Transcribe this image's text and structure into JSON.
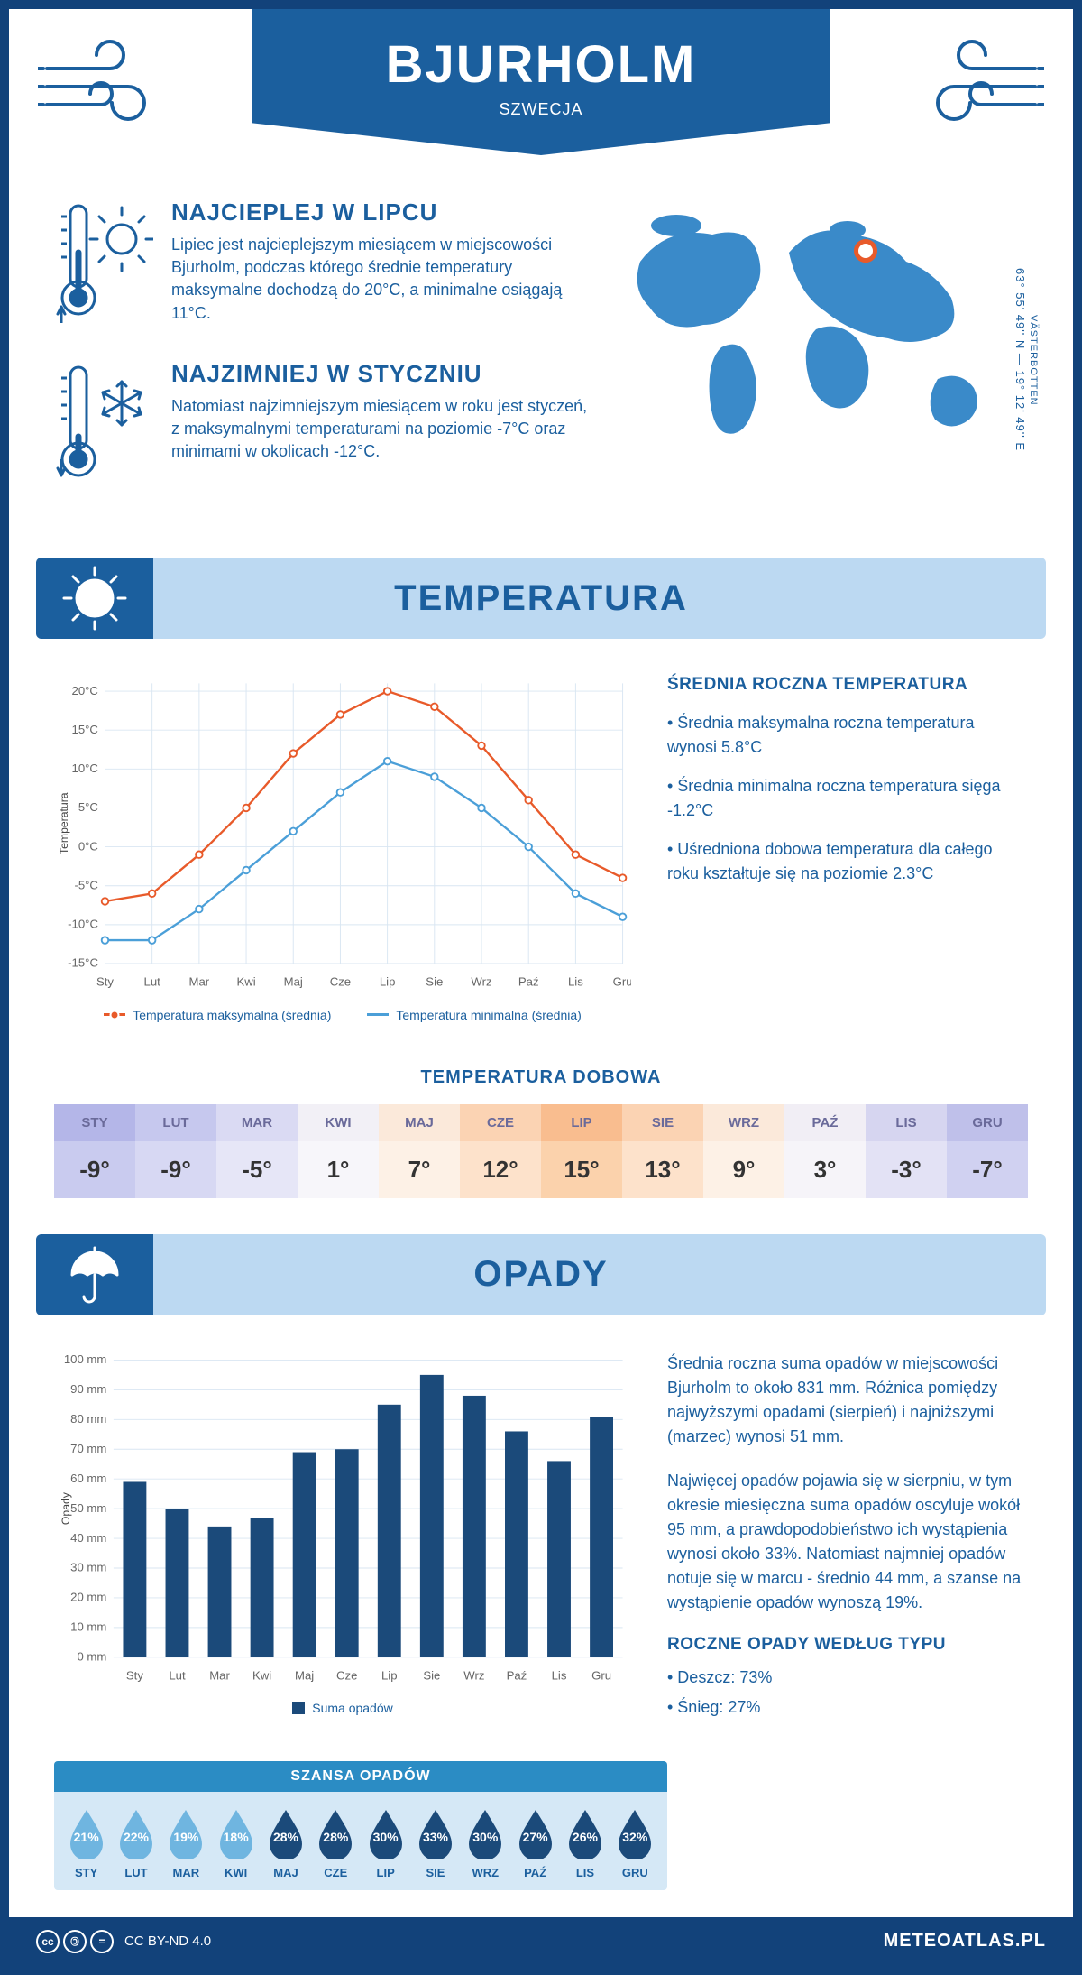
{
  "header": {
    "city": "BJURHOLM",
    "country": "SZWECJA"
  },
  "coords": {
    "text": "63° 55' 49'' N — 19° 12' 49'' E",
    "region": "VÄSTERBOTTEN"
  },
  "map_marker": {
    "left_pct": 57,
    "top_pct": 16
  },
  "facts": {
    "warmest": {
      "title": "NAJCIEPLEJ W LIPCU",
      "text": "Lipiec jest najcieplejszym miesiącem w miejscowości Bjurholm, podczas którego średnie temperatury maksymalne dochodzą do 20°C, a minimalne osiągają 11°C."
    },
    "coldest": {
      "title": "NAJZIMNIEJ W STYCZNIU",
      "text": "Natomiast najzimniejszym miesiącem w roku jest styczeń, z maksymalnymi temperaturami na poziomie -7°C oraz minimami w okolicach -12°C."
    }
  },
  "sections": {
    "temperature": "TEMPERATURA",
    "precipitation": "OPADY"
  },
  "temp_chart": {
    "type": "line",
    "y_axis_label": "Temperatura",
    "months": [
      "Sty",
      "Lut",
      "Mar",
      "Kwi",
      "Maj",
      "Cze",
      "Lip",
      "Sie",
      "Wrz",
      "Paź",
      "Lis",
      "Gru"
    ],
    "y_ticks": [
      -15,
      -10,
      -5,
      0,
      5,
      10,
      15,
      20
    ],
    "y_tick_labels": [
      "-15°C",
      "-10°C",
      "-5°C",
      "0°C",
      "5°C",
      "10°C",
      "15°C",
      "20°C"
    ],
    "ylim": [
      -15,
      21
    ],
    "series": {
      "max": {
        "label": "Temperatura maksymalna (średnia)",
        "color": "#e85a2a",
        "values": [
          -7,
          -6,
          -1,
          5,
          12,
          17,
          20,
          18,
          13,
          6,
          -1,
          -4
        ]
      },
      "min": {
        "label": "Temperatura minimalna (średnia)",
        "color": "#4b9fd8",
        "values": [
          -12,
          -12,
          -8,
          -3,
          2,
          7,
          11,
          9,
          5,
          0,
          -6,
          -9
        ]
      }
    },
    "grid_color": "#d9e6f2",
    "background": "#ffffff",
    "marker_radius": 4,
    "line_width": 2.5
  },
  "temp_summary": {
    "title": "ŚREDNIA ROCZNA TEMPERATURA",
    "bullets": [
      "• Średnia maksymalna roczna temperatura wynosi 5.8°C",
      "• Średnia minimalna roczna temperatura sięga -1.2°C",
      "• Uśredniona dobowa temperatura dla całego roku kształtuje się na poziomie 2.3°C"
    ]
  },
  "daily_temp_table": {
    "title": "TEMPERATURA DOBOWA",
    "months": [
      "STY",
      "LUT",
      "MAR",
      "KWI",
      "MAJ",
      "CZE",
      "LIP",
      "SIE",
      "WRZ",
      "PAŹ",
      "LIS",
      "GRU"
    ],
    "values": [
      "-9°",
      "-9°",
      "-5°",
      "1°",
      "7°",
      "12°",
      "15°",
      "13°",
      "9°",
      "3°",
      "-3°",
      "-7°"
    ],
    "header_colors": [
      "#b4b6e8",
      "#c6c8ee",
      "#dadaf3",
      "#f2f0f6",
      "#fbe9da",
      "#fbd3b3",
      "#f9bd8f",
      "#fbd3b3",
      "#fbe9da",
      "#f1eef5",
      "#d6d5f0",
      "#bfc0ea"
    ],
    "value_colors": [
      "#c9cbef",
      "#d7d8f3",
      "#e6e6f7",
      "#f7f6fa",
      "#fdf1e6",
      "#fde2cb",
      "#fbd2ac",
      "#fde2cb",
      "#fdf1e6",
      "#f6f4f9",
      "#e3e2f5",
      "#d0d1f1"
    ],
    "header_text_color": "#6a6a9a"
  },
  "precip_chart": {
    "type": "bar",
    "y_axis_label": "Opady",
    "months": [
      "Sty",
      "Lut",
      "Mar",
      "Kwi",
      "Maj",
      "Cze",
      "Lip",
      "Sie",
      "Wrz",
      "Paź",
      "Lis",
      "Gru"
    ],
    "values": [
      59,
      50,
      44,
      47,
      69,
      70,
      85,
      95,
      88,
      76,
      66,
      81
    ],
    "y_ticks": [
      0,
      10,
      20,
      30,
      40,
      50,
      60,
      70,
      80,
      90,
      100
    ],
    "y_tick_labels": [
      "0 mm",
      "10 mm",
      "20 mm",
      "30 mm",
      "40 mm",
      "50 mm",
      "60 mm",
      "70 mm",
      "80 mm",
      "90 mm",
      "100 mm"
    ],
    "ylim": [
      0,
      100
    ],
    "bar_color": "#1b4a7a",
    "grid_color": "#d9e6f2",
    "legend_label": "Suma opadów",
    "bar_width_ratio": 0.55
  },
  "precip_summary": {
    "paragraphs": [
      "Średnia roczna suma opadów w miejscowości Bjurholm to około 831 mm. Różnica pomiędzy najwyższymi opadami (sierpień) i najniższymi (marzec) wynosi 51 mm.",
      "Najwięcej opadów pojawia się w sierpniu, w tym okresie miesięczna suma opadów oscyluje wokół 95 mm, a prawdopodobieństwo ich wystąpienia wynosi około 33%. Natomiast najmniej opadów notuje się w marcu - średnio 44 mm, a szanse na wystąpienie opadów wynoszą 19%."
    ],
    "type_title": "ROCZNE OPADY WEDŁUG TYPU",
    "type_bullets": [
      "• Deszcz: 73%",
      "• Śnieg: 27%"
    ]
  },
  "precip_chance": {
    "title": "SZANSA OPADÓW",
    "months": [
      "STY",
      "LUT",
      "MAR",
      "KWI",
      "MAJ",
      "CZE",
      "LIP",
      "SIE",
      "WRZ",
      "PAŹ",
      "LIS",
      "GRU"
    ],
    "values": [
      "21%",
      "22%",
      "19%",
      "18%",
      "28%",
      "28%",
      "30%",
      "33%",
      "30%",
      "27%",
      "26%",
      "32%"
    ],
    "drop_colors": [
      "#6fb5e0",
      "#6fb5e0",
      "#6fb5e0",
      "#6fb5e0",
      "#1b4a7a",
      "#1b4a7a",
      "#1b4a7a",
      "#1b4a7a",
      "#1b4a7a",
      "#1b4a7a",
      "#1b4a7a",
      "#1b4a7a"
    ],
    "title_bar_color": "#2b8cc4",
    "body_bg": "#d5e8f6"
  },
  "footer": {
    "license": "CC BY-ND 4.0",
    "site": "METEOATLAS.PL"
  },
  "colors": {
    "primary": "#1b5f9e",
    "banner_light": "#bcd9f2",
    "page_border": "#12427a"
  }
}
